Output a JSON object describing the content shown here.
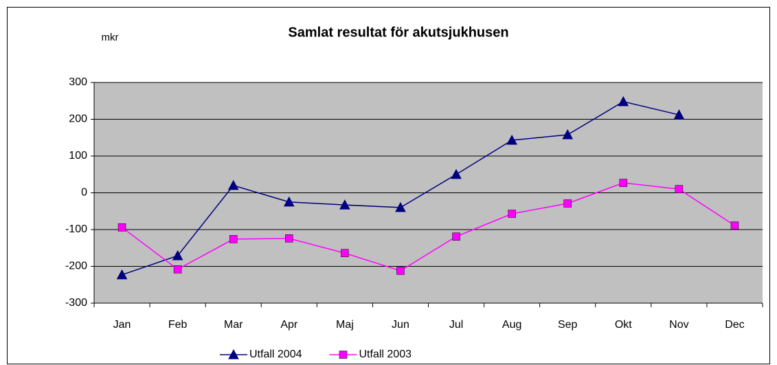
{
  "chart_data": {
    "type": "line",
    "title": "Samlat resultat för akutsjukhusen",
    "y_label": "mkr",
    "categories": [
      "Jan",
      "Feb",
      "Mar",
      "Apr",
      "Maj",
      "Jun",
      "Jul",
      "Aug",
      "Sep",
      "Okt",
      "Nov",
      "Dec"
    ],
    "series": [
      {
        "name": "Utfall 2004",
        "color": "#000080",
        "marker": "triangle",
        "values": [
          -223,
          -171,
          20,
          -25,
          -33,
          -40,
          50,
          143,
          158,
          248,
          212,
          null
        ]
      },
      {
        "name": "Utfall 2003",
        "color": "#ff00ff",
        "marker": "square",
        "values": [
          -94,
          -208,
          -126,
          -124,
          -164,
          -212,
          -119,
          -57,
          -29,
          27,
          10,
          -89
        ]
      }
    ],
    "ylim": [
      -300,
      300
    ],
    "yticks": [
      -300,
      -200,
      -100,
      0,
      100,
      200,
      300
    ],
    "grid": true,
    "legend": "bottom"
  }
}
